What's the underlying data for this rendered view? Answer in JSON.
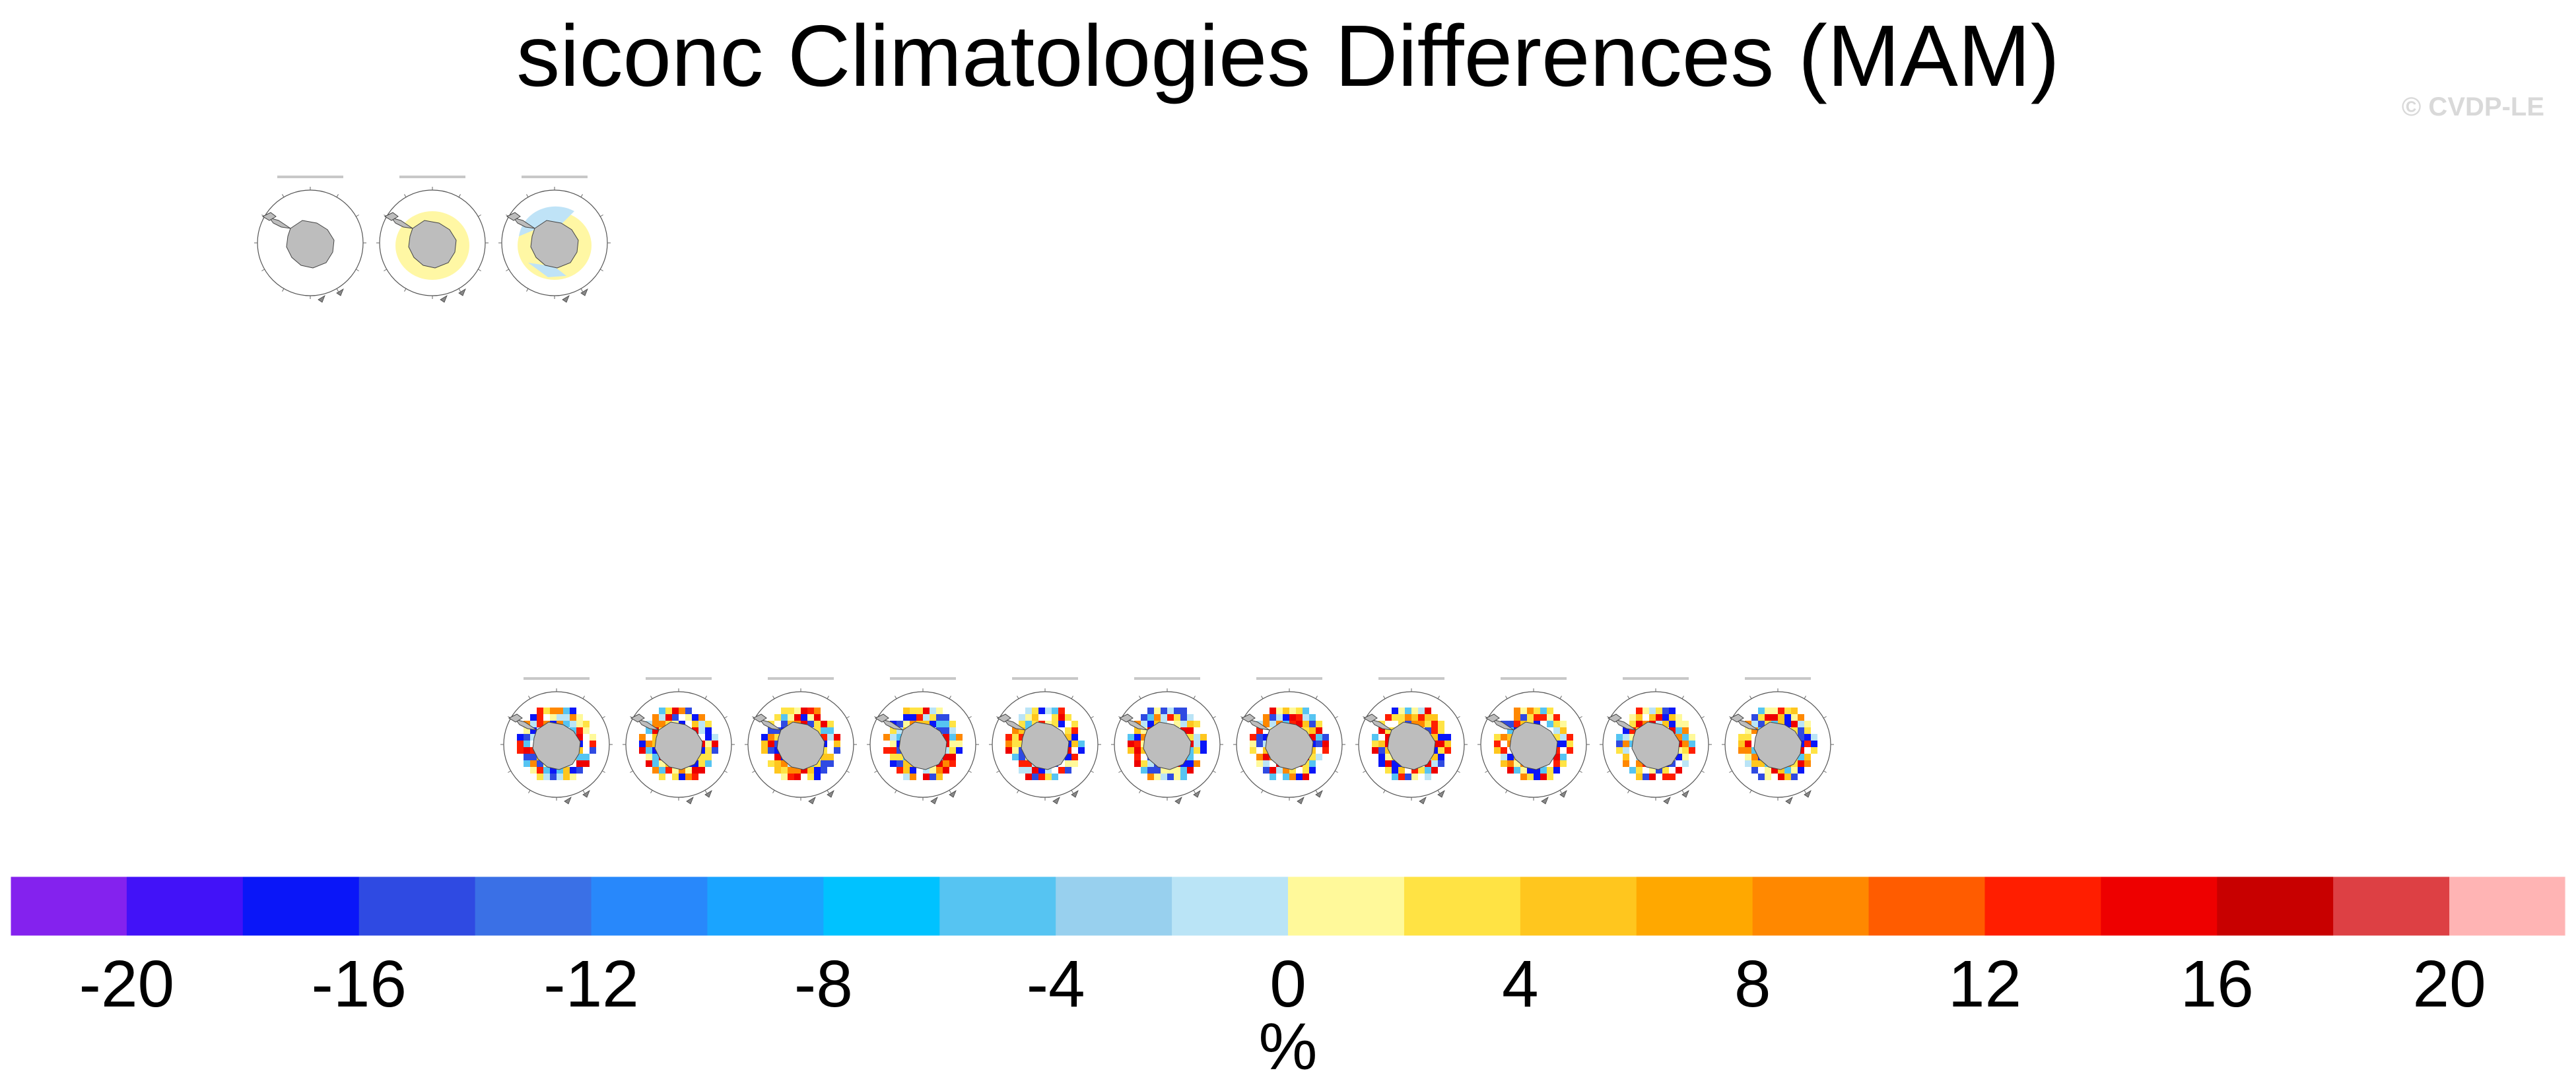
{
  "title": "siconc Climatologies Differences (MAM)",
  "copyright": "© CVDP-LE",
  "chart_data": {
    "type": "heatmap",
    "title": "siconc Climatologies Differences (MAM)",
    "colorbar": {
      "unit_label": "%",
      "tick_labels": [
        "-20",
        "-16",
        "-12",
        "-8",
        "-4",
        "0",
        "4",
        "8",
        "12",
        "16",
        "20"
      ],
      "tick_values": [
        -20,
        -16,
        -12,
        -8,
        -4,
        0,
        4,
        8,
        12,
        16,
        20
      ],
      "range": [
        -22,
        22
      ],
      "bin_width": 2,
      "colors": [
        "#8422ee",
        "#4212f8",
        "#0a16f8",
        "#2f4ae2",
        "#3a70e6",
        "#2888fb",
        "#1aa4ff",
        "#00c2ff",
        "#56c4f2",
        "#98d0ee",
        "#bae4f6",
        "#fff99a",
        "#ffe344",
        "#ffc61e",
        "#ffa800",
        "#ff8800",
        "#ff5c00",
        "#ff1e00",
        "#ee0000",
        "#c80000",
        "#dd4044",
        "#ffb4b4"
      ]
    },
    "top_row_panels": 3,
    "bottom_row_panels": 11
  }
}
